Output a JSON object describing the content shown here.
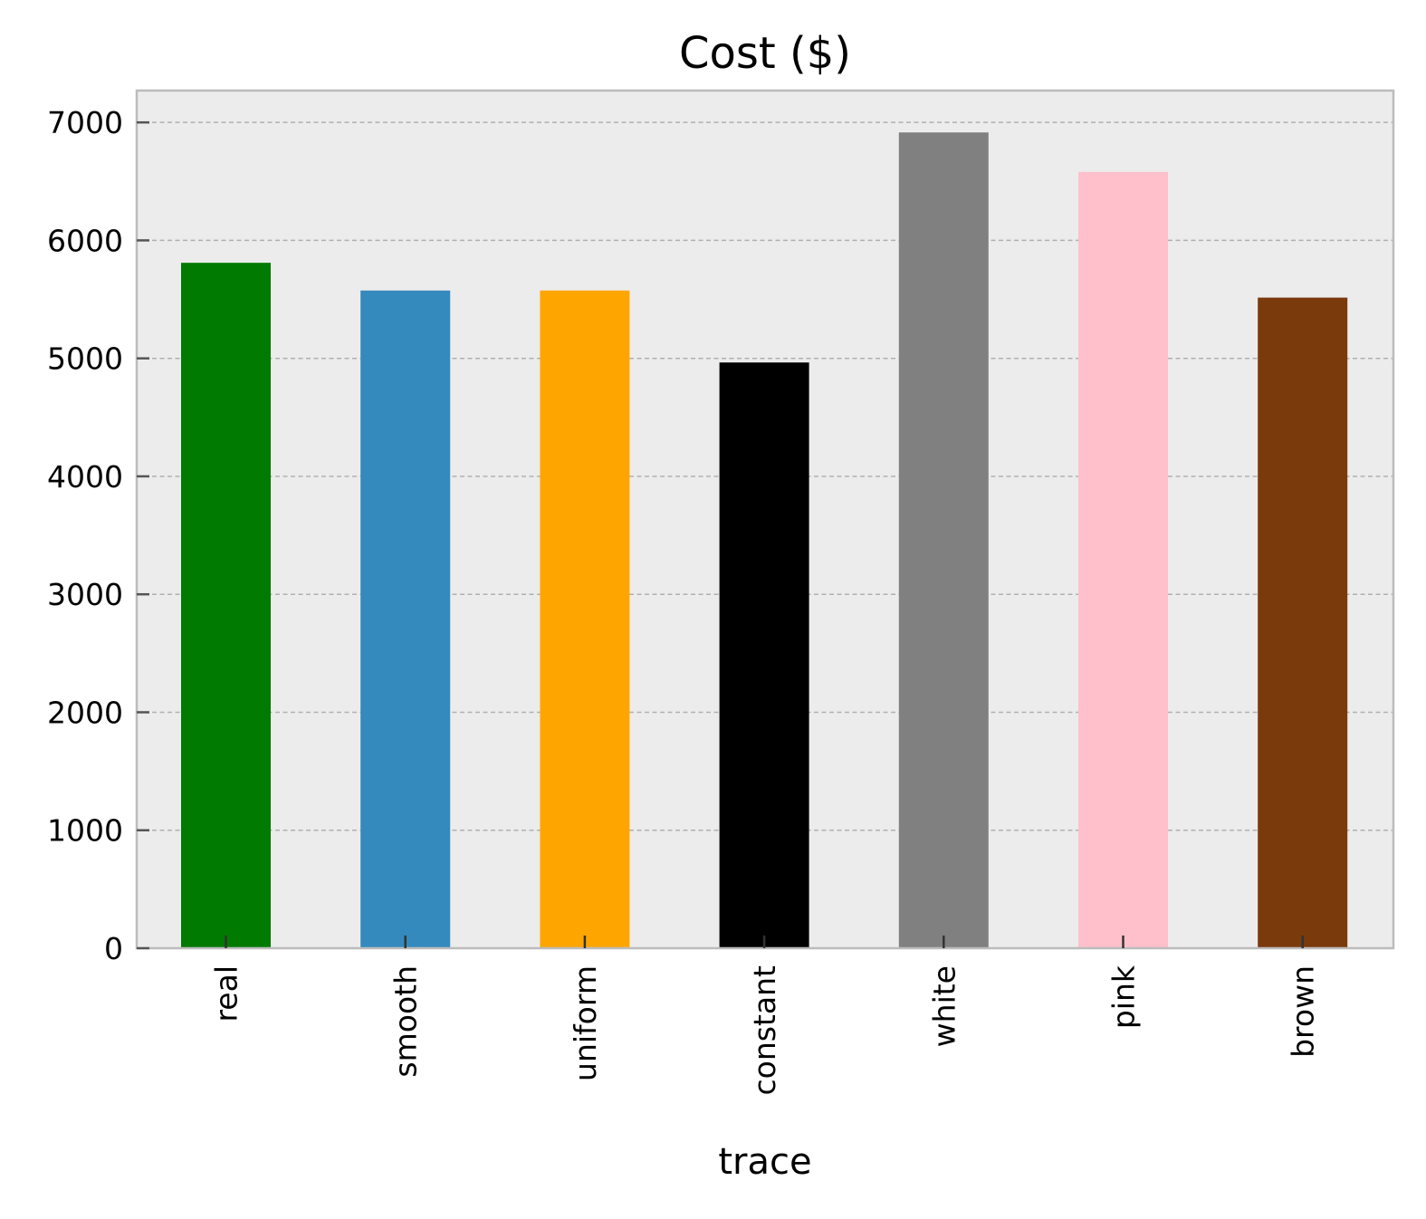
{
  "chart_data": {
    "type": "bar",
    "title": "Cost ($)",
    "xlabel": "trace",
    "ylabel": "",
    "categories": [
      "real",
      "smooth",
      "uniform",
      "constant",
      "white",
      "pink",
      "brown"
    ],
    "values": [
      5810,
      5575,
      5575,
      4965,
      6915,
      6580,
      5515
    ],
    "colors": [
      "#007a00",
      "#348abd",
      "#ffa500",
      "#000000",
      "#808080",
      "#ffc0cb",
      "#7b3a0c"
    ],
    "ylim": [
      0,
      7270
    ],
    "yticks": [
      0,
      1000,
      2000,
      3000,
      4000,
      5000,
      6000,
      7000
    ],
    "ytick_labels": [
      "0",
      "1000",
      "2000",
      "3000",
      "4000",
      "5000",
      "6000",
      "7000"
    ],
    "grid": "y-dashed",
    "legend": "none",
    "plot_background": "#ececec"
  }
}
